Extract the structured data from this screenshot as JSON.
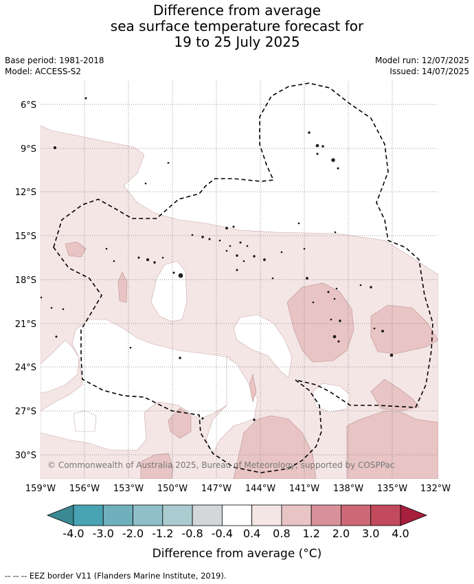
{
  "title_lines": [
    "Difference from average",
    "sea surface temperature forecast for",
    "19 to 25 July 2025"
  ],
  "base_period": "Base period: 1981-2018",
  "model": "Model: ACCESS-S2",
  "model_run": "Model run: 12/07/2025",
  "issued": "Issued: 14/07/2025",
  "copyright": "© Commonwealth of Australia 2025, Bureau of Meteorology, supported by COSPPac",
  "footnote": "--  --  -- EEZ border V11 (Flanders Marine Institute, 2019).",
  "lon_ticks": [
    "159°W",
    "156°W",
    "153°W",
    "150°W",
    "147°W",
    "144°W",
    "141°W",
    "138°W",
    "135°W",
    "132°W"
  ],
  "lat_ticks": [
    "6°S",
    "9°S",
    "12°S",
    "15°S",
    "18°S",
    "21°S",
    "24°S",
    "27°S",
    "30°S"
  ],
  "colorbar": {
    "label": "Difference from average (°C)",
    "ticks": [
      "-4.0",
      "-3.0",
      "-2.0",
      "-1.2",
      "-0.8",
      "-0.4",
      "0.4",
      "0.8",
      "1.2",
      "2.0",
      "3.0",
      "4.0"
    ],
    "colors": {
      "below": "#3b8a93",
      "bins": [
        "#48a3b3",
        "#6fb0bd",
        "#8fbfc8",
        "#aacbcf",
        "#d3d7d9",
        "#ffffff",
        "#f5e6e6",
        "#e8c5c4",
        "#d8919a",
        "#cd6877",
        "#c24a5c"
      ],
      "above": "#a81e3d"
    }
  },
  "map_colors": {
    "band_0_4_0_8": "#f5e6e6",
    "band_0_8_1_2": "#e8c5c4",
    "neutral": "#ffffff"
  }
}
